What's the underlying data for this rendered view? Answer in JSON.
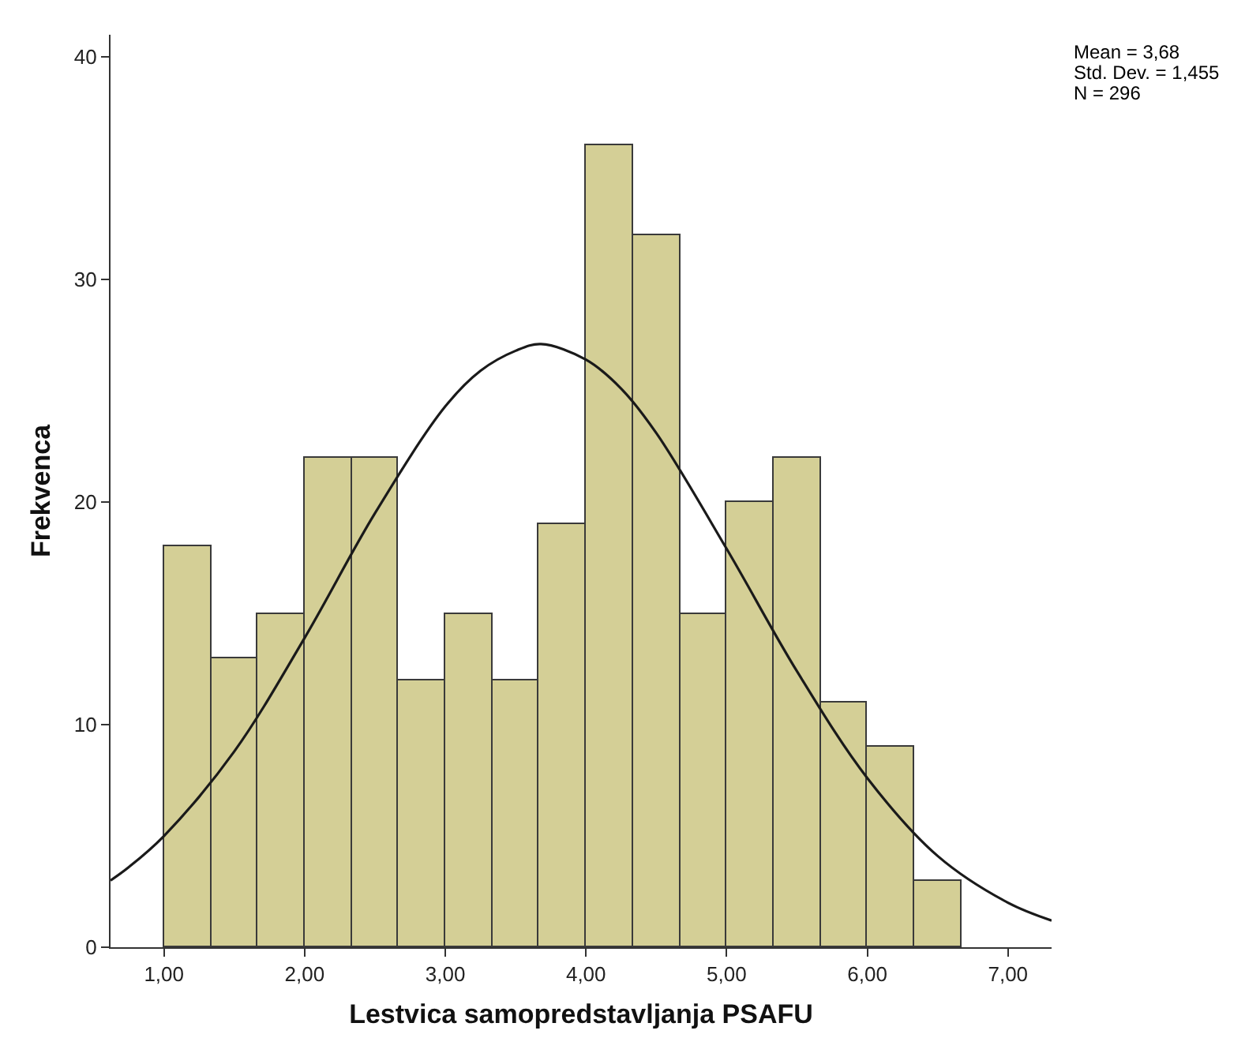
{
  "chart_data": {
    "type": "histogram",
    "xlabel": "Lestvica samopredstavljanja PSAFU",
    "ylabel": "Frekvenca",
    "annotations": [
      "Mean = 3,68",
      "Std. Dev. = 1,455",
      "N = 296"
    ],
    "bins": [
      1,
      1.333,
      1.667,
      2,
      2.333,
      2.667,
      3,
      3.333,
      3.667,
      4,
      4.333,
      4.667,
      5,
      5.333,
      5.667,
      6,
      6.333,
      6.667
    ],
    "series": [
      {
        "color": "#d4cf96",
        "values": [
          18,
          13,
          15,
          22,
          22,
          12,
          15,
          12,
          19,
          36,
          32,
          15,
          20,
          22,
          11,
          9,
          3
        ]
      },
      {
        "type": "line",
        "color": "#1a1a1a",
        "x": [
          0.62,
          0.75,
          1,
          1.5,
          2,
          2.5,
          3,
          3.25,
          3.5,
          3.68,
          4,
          4.25,
          4.5,
          5,
          5.5,
          6,
          6.5,
          7,
          7.31
        ],
        "values": [
          3.0,
          3.6,
          5.0,
          8.8,
          13.9,
          19.5,
          24.3,
          25.9,
          26.8,
          27.1,
          26.4,
          25.1,
          23.1,
          17.9,
          12.4,
          7.6,
          4.1,
          2.0,
          1.2
        ]
      }
    ],
    "xlim": [
      0.62,
      7.31
    ],
    "xticks": [
      {
        "value": 1,
        "label": "1,00"
      },
      {
        "value": 2,
        "label": "2,00"
      },
      {
        "value": 3,
        "label": "3,00"
      },
      {
        "value": 4,
        "label": "4,00"
      },
      {
        "value": 5,
        "label": "5,00"
      },
      {
        "value": 6,
        "label": "6,00"
      },
      {
        "value": 7,
        "label": "7,00"
      }
    ],
    "ylim": [
      0,
      41
    ],
    "yticks": [
      0,
      10,
      20,
      30,
      40
    ],
    "grid": false,
    "marker": "none",
    "line_style": "solid"
  }
}
